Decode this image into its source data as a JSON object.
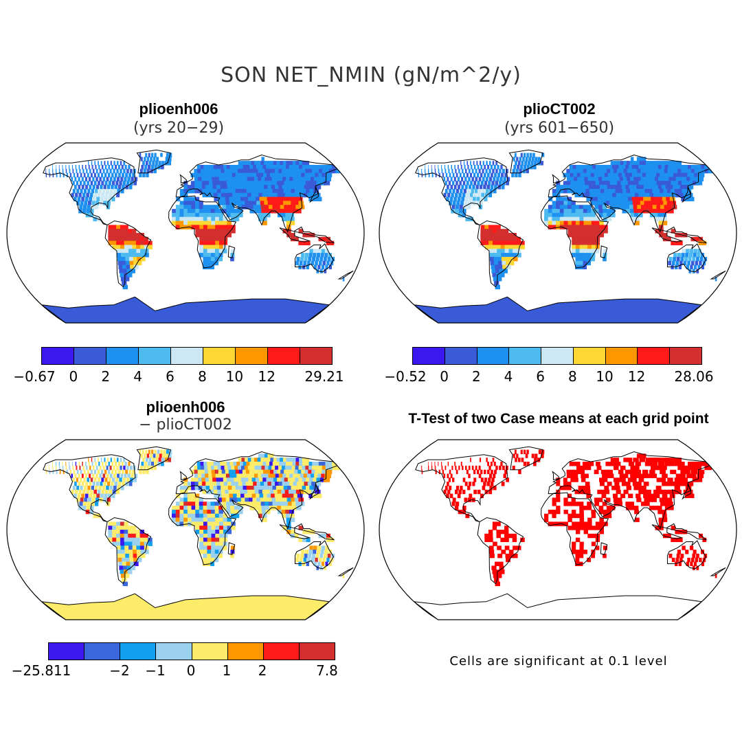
{
  "title": "SON NET_NMIN (gN/m^2/y)",
  "panels": [
    {
      "title": "plioenh006",
      "subtitle": "(yrs 20−29)",
      "colorbar": {
        "colors": [
          "#3b18f0",
          "#3a5bd8",
          "#1e90f0",
          "#4dbaf0",
          "#cce8f4",
          "#fdd835",
          "#ff9800",
          "#ff1a1a",
          "#d32f2f"
        ],
        "labels": [
          "−0.67",
          "0",
          "2",
          "4",
          "6",
          "8",
          "10",
          "12",
          "29.21"
        ]
      }
    },
    {
      "title": "plioCT002",
      "subtitle": "(yrs 601−650)",
      "colorbar": {
        "colors": [
          "#3b18f0",
          "#3a5bd8",
          "#1e90f0",
          "#4dbaf0",
          "#cce8f4",
          "#fdd835",
          "#ff9800",
          "#ff1a1a",
          "#d32f2f"
        ],
        "labels": [
          "−0.52",
          "0",
          "2",
          "4",
          "6",
          "8",
          "10",
          "12",
          "28.06"
        ]
      }
    },
    {
      "title": "plioenh006",
      "subtitle": "− plioCT002",
      "colorbar": {
        "colors": [
          "#3b18f0",
          "#3a68dc",
          "#14a0f0",
          "#9bd1ee",
          "#fdeb6a",
          "#ff9800",
          "#ff1a1a",
          "#d32f2f"
        ],
        "labels": [
          "−25.811",
          "−2",
          "−1",
          "0",
          "1",
          "2",
          "7.8"
        ]
      }
    },
    {
      "title": "T-Test of two Case means at each grid point",
      "note": "Cells are significant at 0.1 level",
      "colors": {
        "significant": "#ff0000"
      }
    }
  ]
}
